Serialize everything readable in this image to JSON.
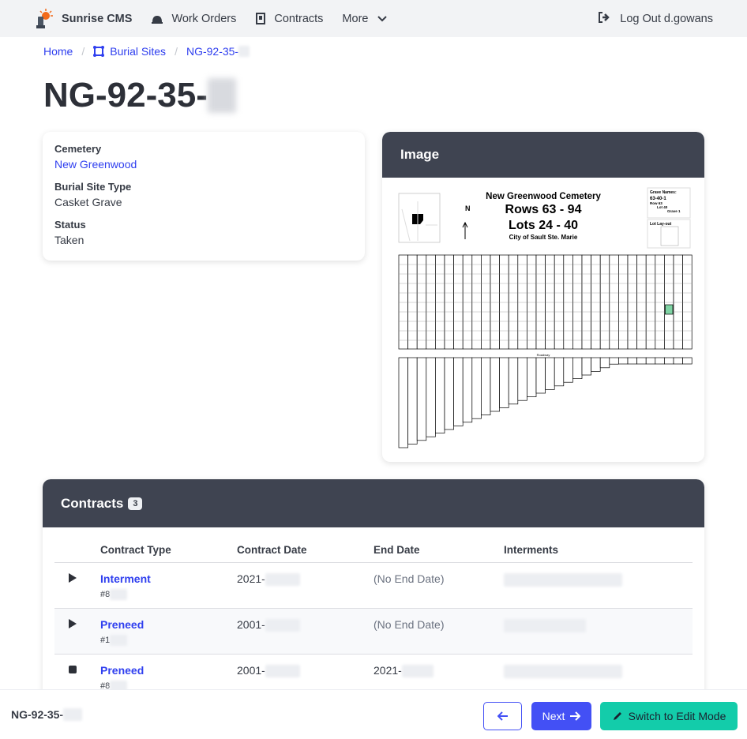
{
  "nav": {
    "brand": "Sunrise CMS",
    "work_orders": "Work Orders",
    "contracts": "Contracts",
    "more": "More",
    "logout": "Log Out d.gowans"
  },
  "breadcrumb": {
    "home": "Home",
    "burial_sites": "Burial Sites",
    "current": "NG-92-35-"
  },
  "title": "NG-92-35-",
  "details": {
    "cemetery_label": "Cemetery",
    "cemetery": "New Greenwood",
    "type_label": "Burial Site Type",
    "type": "Casket Grave",
    "status_label": "Status",
    "status": "Taken"
  },
  "image_card": {
    "title": "Image",
    "map": {
      "title": "New Greenwood Cemetery",
      "rows": "Rows 63 - 94",
      "lots": "Lots 24 - 40",
      "city": "City of Sault Ste. Marie",
      "north": "N",
      "grave_names": "Grave Names:",
      "grave_example": "63-40-1",
      "row": "Row 63",
      "lot": "Lot 40",
      "grave": "Grave 1",
      "layout": "Lot Lay-out",
      "roadway": "Roadway"
    },
    "highlight_color": "#7fd3a4"
  },
  "contracts": {
    "title": "Contracts",
    "count": "3",
    "columns": [
      "",
      "Contract Type",
      "Contract Date",
      "End Date",
      "Interments"
    ],
    "rows": [
      {
        "icon": "play-icon",
        "type": "Interment",
        "number": "#8",
        "date": "2021-",
        "end": "(No End Date)",
        "end_muted": true
      },
      {
        "icon": "play-icon",
        "type": "Preneed",
        "number": "#1",
        "date": "2001-",
        "end": "(No End Date)",
        "end_muted": true
      },
      {
        "icon": "stop-icon",
        "type": "Preneed",
        "number": "#8",
        "date": "2001-",
        "end": "2021-",
        "end_muted": false
      }
    ]
  },
  "footer": {
    "title": "NG-92-35-",
    "next": "Next",
    "edit": "Switch to Edit Mode"
  },
  "colors": {
    "primary": "#4350f5",
    "success": "#13ccaa",
    "header": "#3f4451"
  }
}
